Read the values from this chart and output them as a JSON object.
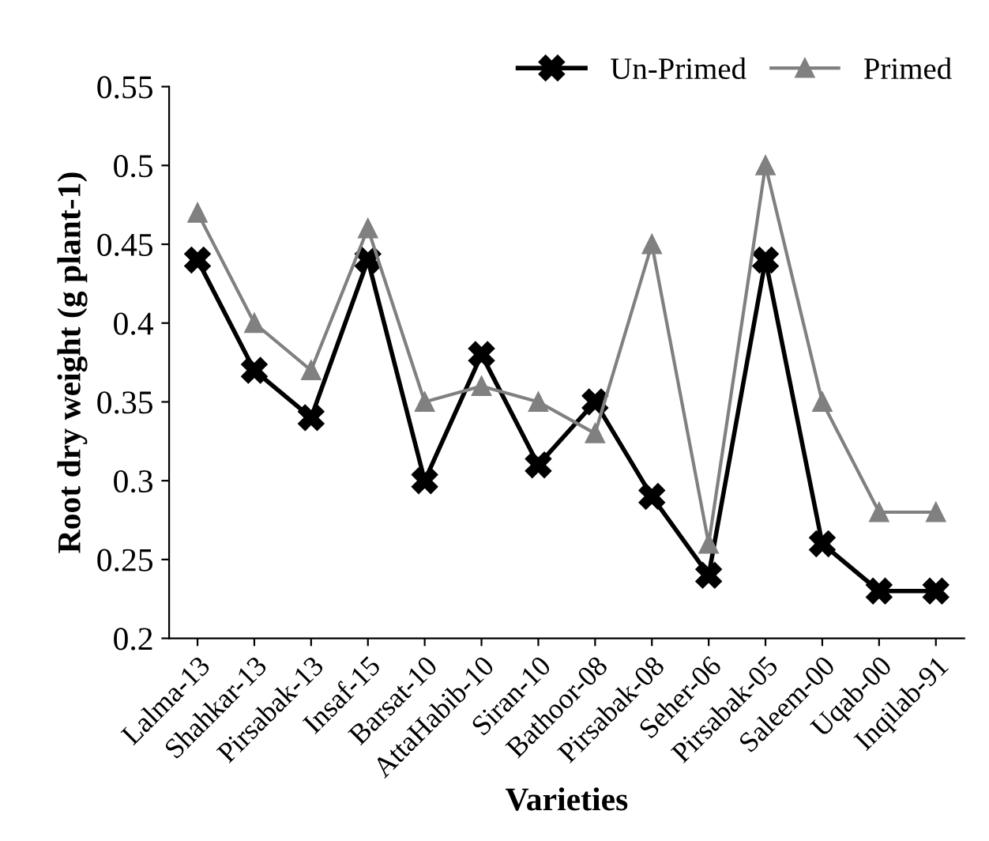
{
  "chart_data": {
    "type": "line",
    "xlabel": "Varieties",
    "ylabel": "Root dry weight (g plant-1)",
    "categories": [
      "Lalma-13",
      "Shahkar-13",
      "Pirsabak-13",
      "Insaf-15",
      "Barsat-10",
      "AttaHabib-10",
      "Siran-10",
      "Bathoor-08",
      "Pirsabak-08",
      "Seher-06",
      "Pirsabak-05",
      "Saleem-00",
      "Uqab-00",
      "Inqilab-91"
    ],
    "series": [
      {
        "name": "Un-Primed",
        "color": "#000000",
        "marker": "cross",
        "values": [
          0.44,
          0.37,
          0.34,
          0.44,
          0.3,
          0.38,
          0.31,
          0.35,
          0.29,
          0.24,
          0.44,
          0.26,
          0.23,
          0.23
        ]
      },
      {
        "name": "Primed",
        "color": "#808080",
        "marker": "triangle",
        "values": [
          0.47,
          0.4,
          0.37,
          0.46,
          0.35,
          0.36,
          0.35,
          0.33,
          0.45,
          0.26,
          0.5,
          0.35,
          0.28,
          0.28
        ]
      }
    ],
    "ylim": [
      0.2,
      0.55
    ],
    "yticks": [
      0.2,
      0.25,
      0.3,
      0.35,
      0.4,
      0.45,
      0.5,
      0.55
    ],
    "grid": false,
    "legend": "top right",
    "line_style": "solid"
  }
}
